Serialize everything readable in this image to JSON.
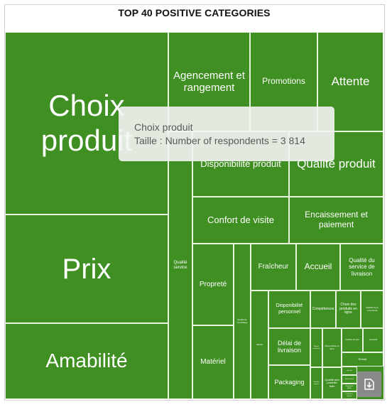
{
  "title": "TOP 40 POSITIVE CATEGORIES",
  "tooltip": {
    "line1": "Choix produit",
    "line2": "Taille : Number of respondents = 3 814"
  },
  "categories": {
    "choix_produit": "Choix produit",
    "prix": "Prix",
    "amabilite": "Amabilité",
    "agencement": "Agencement et rangement",
    "promotions": "Promotions",
    "attente": "Attente",
    "disponibilite_produit": "Disponibilité produit",
    "qualite_produit": "Qualité produit",
    "confort": "Confort de visite",
    "encaissement": "Encaissement et paiement",
    "qualite_service": "Qualité service",
    "proprete": "Propreté",
    "materiel": "Matériel",
    "fraicheur": "Fraîcheur",
    "accueil": "Accueil",
    "qualite_livraison": "Qualité du service de livraison",
    "dispo_personnel": "Disponibilité personnel",
    "competences": "Compétences",
    "choix_ligne": "Choix des produits en ligne",
    "delai": "Délai de livraison",
    "packaging": "Packaging",
    "qualite_produits_frais": "Qualité des produits frais",
    "retrait": "Retrait",
    "small_1": "Qualité de l'emballage",
    "small_2": "Variété",
    "small_3": "Fiabilité de la commande",
    "small_4": "Rapport qualité prix",
    "small_5": "Disponibilité en ligne",
    "small_6": "Facilité du site",
    "small_7": "Conseils",
    "small_8": "Propreté magasin",
    "small_9": "Sécurité",
    "small_10": "Service client",
    "small_11": "Programme fidélité",
    "small_12": "Livraison à domicile",
    "small_13": "Horaires",
    "small_14": "Parking",
    "small_15": "Information produit",
    "small_16": "Retour produit",
    "small_17": "Drive"
  },
  "chart_data": {
    "type": "treemap",
    "title": "TOP 40 POSITIVE CATEGORIES",
    "measure": "Number of respondents",
    "highlighted": {
      "category": "Choix produit",
      "value": 3814
    },
    "color": "#3f8f22",
    "border_color": "#e8f2e0"
  },
  "icons": {
    "download": "download-icon"
  }
}
